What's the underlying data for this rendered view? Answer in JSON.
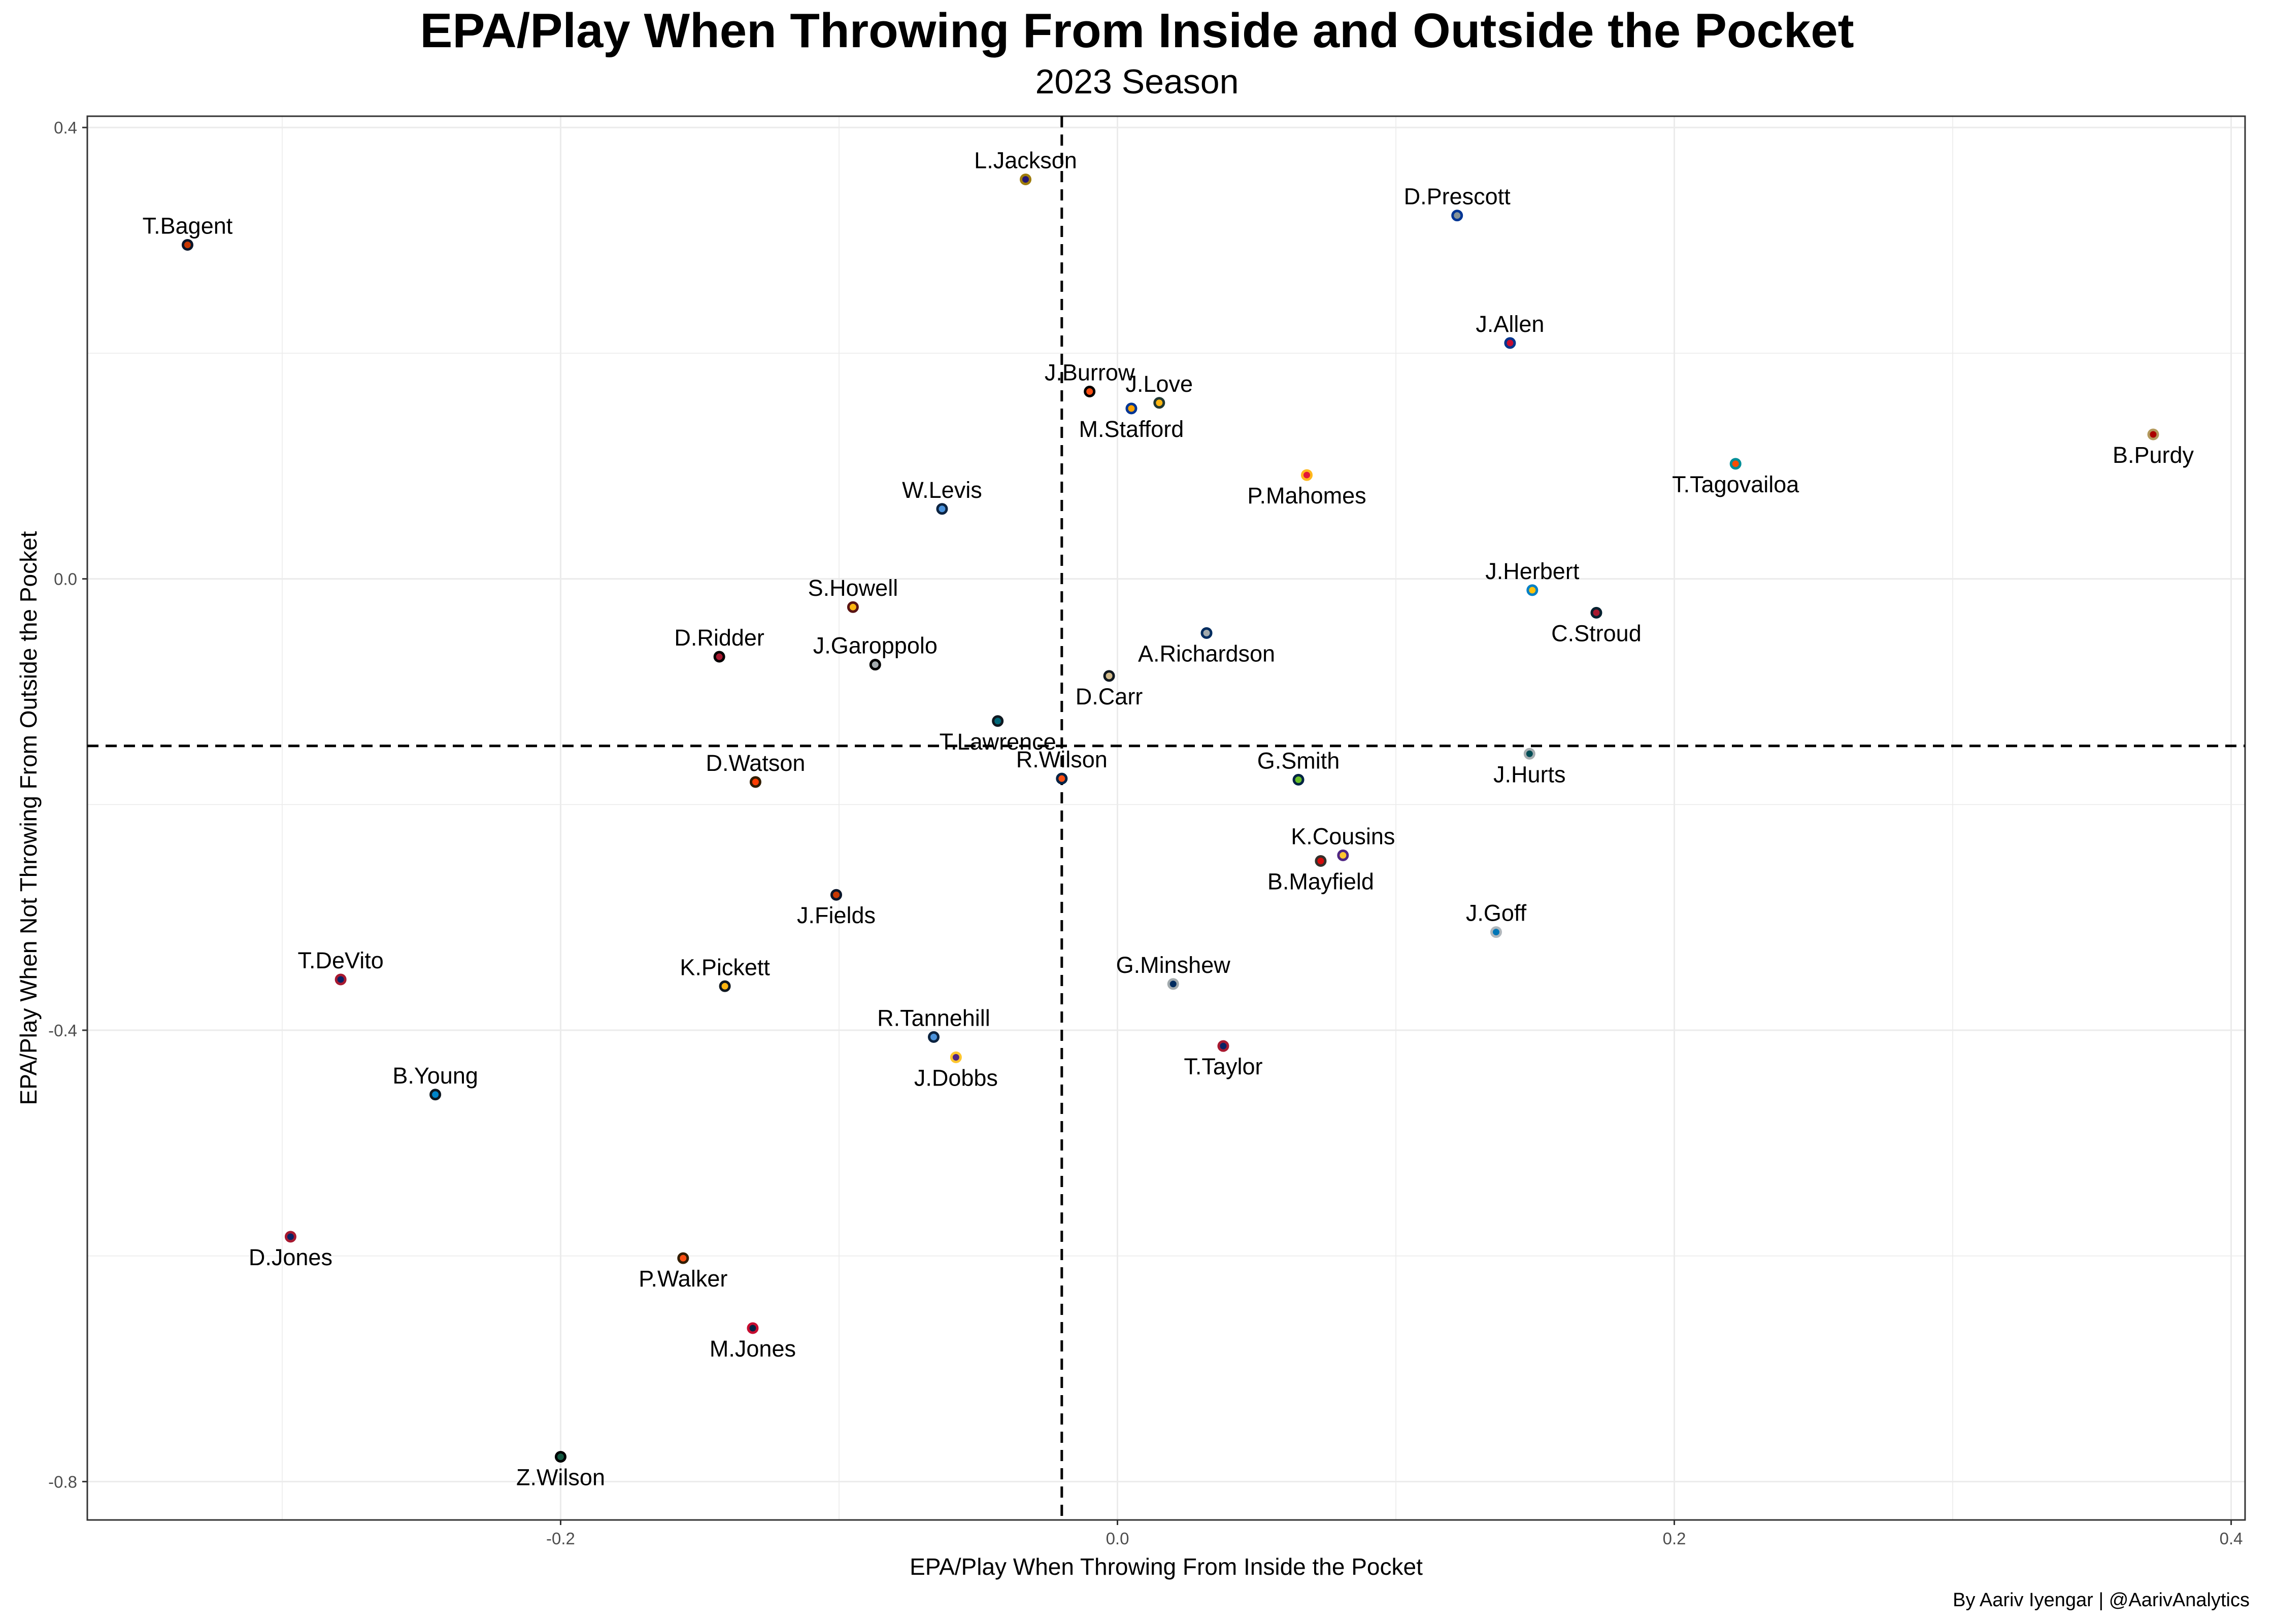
{
  "chart_data": {
    "type": "scatter",
    "title": "EPA/Play When Throwing From Inside and Outside the Pocket",
    "subtitle": "2023 Season",
    "xlabel": "EPA/Play When Throwing From Inside the Pocket",
    "ylabel": "EPA/Play When Not Throwing From Outside the Pocket",
    "caption": "By Aariv Iyengar | @AarivAnalytics",
    "xlim": [
      -0.37,
      0.405
    ],
    "ylim": [
      -0.834,
      0.41
    ],
    "xticks": [
      -0.2,
      0.0,
      0.2,
      0.4
    ],
    "yticks": [
      -0.8,
      -0.4,
      0.0,
      0.4
    ],
    "xtick_labels": [
      "-0.2",
      "0.0",
      "0.2",
      "0.4"
    ],
    "ytick_labels": [
      "-0.8",
      "-0.4",
      "0.0",
      "0.4"
    ],
    "grid": true,
    "reference_lines": {
      "x": -0.02,
      "y": -0.148
    },
    "points": [
      {
        "name": "L.Jackson",
        "x": -0.033,
        "y": 0.354,
        "color": "#241773",
        "edge": "#9E7C0C",
        "label_pos": "above"
      },
      {
        "name": "T.Bagent",
        "x": -0.334,
        "y": 0.296,
        "color": "#C83803",
        "edge": "#0B162A",
        "label_pos": "above"
      },
      {
        "name": "D.Prescott",
        "x": 0.122,
        "y": 0.322,
        "color": "#869397",
        "edge": "#003594",
        "label_pos": "above"
      },
      {
        "name": "J.Allen",
        "x": 0.141,
        "y": 0.209,
        "color": "#C60C30",
        "edge": "#00338D",
        "label_pos": "above"
      },
      {
        "name": "J.Burrow",
        "x": -0.01,
        "y": 0.166,
        "color": "#FB4F14",
        "edge": "#000000",
        "label_pos": "above"
      },
      {
        "name": "J.Love",
        "x": 0.015,
        "y": 0.156,
        "color": "#FFB612",
        "edge": "#203731",
        "label_pos": "above"
      },
      {
        "name": "M.Stafford",
        "x": 0.005,
        "y": 0.151,
        "color": "#FFA300",
        "edge": "#003594",
        "label_pos": "below"
      },
      {
        "name": "B.Purdy",
        "x": 0.372,
        "y": 0.128,
        "color": "#AA0000",
        "edge": "#B3995D",
        "label_pos": "below"
      },
      {
        "name": "T.Tagovailoa",
        "x": 0.222,
        "y": 0.102,
        "color": "#FC4C02",
        "edge": "#008E97",
        "label_pos": "below"
      },
      {
        "name": "P.Mahomes",
        "x": 0.068,
        "y": 0.092,
        "color": "#E31837",
        "edge": "#FFB81C",
        "label_pos": "below"
      },
      {
        "name": "W.Levis",
        "x": -0.063,
        "y": 0.062,
        "color": "#4B92DB",
        "edge": "#0C2340",
        "label_pos": "above"
      },
      {
        "name": "J.Herbert",
        "x": 0.149,
        "y": -0.01,
        "color": "#FFC20E",
        "edge": "#0080C6",
        "label_pos": "above"
      },
      {
        "name": "C.Stroud",
        "x": 0.172,
        "y": -0.03,
        "color": "#A71930",
        "edge": "#03202F",
        "label_pos": "below"
      },
      {
        "name": "S.Howell",
        "x": -0.095,
        "y": -0.025,
        "color": "#FFB612",
        "edge": "#5A1414",
        "label_pos": "above"
      },
      {
        "name": "A.Richardson",
        "x": 0.032,
        "y": -0.048,
        "color": "#A2AAAD",
        "edge": "#002C5F",
        "label_pos": "below"
      },
      {
        "name": "D.Ridder",
        "x": -0.143,
        "y": -0.069,
        "color": "#A71930",
        "edge": "#000000",
        "label_pos": "above"
      },
      {
        "name": "J.Garoppolo",
        "x": -0.087,
        "y": -0.076,
        "color": "#A5ACAF",
        "edge": "#000000",
        "label_pos": "above"
      },
      {
        "name": "D.Carr",
        "x": -0.003,
        "y": -0.086,
        "color": "#D3BC8D",
        "edge": "#101820",
        "label_pos": "below"
      },
      {
        "name": "T.Lawrence",
        "x": -0.043,
        "y": -0.126,
        "color": "#006778",
        "edge": "#101820",
        "label_pos": "below"
      },
      {
        "name": "J.Hurts",
        "x": 0.148,
        "y": -0.155,
        "color": "#004C54",
        "edge": "#A5ACAF",
        "label_pos": "below"
      },
      {
        "name": "R.Wilson",
        "x": -0.02,
        "y": -0.177,
        "color": "#FB4F14",
        "edge": "#002244",
        "label_pos": "above"
      },
      {
        "name": "G.Smith",
        "x": 0.065,
        "y": -0.178,
        "color": "#69BE28",
        "edge": "#002244",
        "label_pos": "above"
      },
      {
        "name": "D.Watson",
        "x": -0.13,
        "y": -0.18,
        "color": "#FF3C00",
        "edge": "#311D00",
        "label_pos": "above"
      },
      {
        "name": "K.Cousins",
        "x": 0.081,
        "y": -0.245,
        "color": "#FFC62F",
        "edge": "#4F2683",
        "label_pos": "above"
      },
      {
        "name": "B.Mayfield",
        "x": 0.073,
        "y": -0.25,
        "color": "#D50A0A",
        "edge": "#34302B",
        "label_pos": "below"
      },
      {
        "name": "J.Fields",
        "x": -0.101,
        "y": -0.28,
        "color": "#C83803",
        "edge": "#0B162A",
        "label_pos": "below"
      },
      {
        "name": "J.Goff",
        "x": 0.136,
        "y": -0.313,
        "color": "#0076B6",
        "edge": "#B0B7BC",
        "label_pos": "above"
      },
      {
        "name": "T.DeVito",
        "x": -0.279,
        "y": -0.355,
        "color": "#0B2265",
        "edge": "#A71930",
        "label_pos": "above"
      },
      {
        "name": "K.Pickett",
        "x": -0.141,
        "y": -0.361,
        "color": "#FFB612",
        "edge": "#101820",
        "label_pos": "above"
      },
      {
        "name": "G.Minshew",
        "x": 0.02,
        "y": -0.359,
        "color": "#002C5F",
        "edge": "#A2AAAD",
        "label_pos": "above"
      },
      {
        "name": "R.Tannehill",
        "x": -0.066,
        "y": -0.406,
        "color": "#4B92DB",
        "edge": "#0C2340",
        "label_pos": "above"
      },
      {
        "name": "T.Taylor",
        "x": 0.038,
        "y": -0.414,
        "color": "#0B2265",
        "edge": "#A71930",
        "label_pos": "below"
      },
      {
        "name": "J.Dobbs",
        "x": -0.058,
        "y": -0.424,
        "color": "#4F2683",
        "edge": "#FFC62F",
        "label_pos": "below"
      },
      {
        "name": "B.Young",
        "x": -0.245,
        "y": -0.457,
        "color": "#0085CA",
        "edge": "#101820",
        "label_pos": "above"
      },
      {
        "name": "D.Jones",
        "x": -0.297,
        "y": -0.583,
        "color": "#0B2265",
        "edge": "#A71930",
        "label_pos": "below"
      },
      {
        "name": "P.Walker",
        "x": -0.156,
        "y": -0.602,
        "color": "#FB4F14",
        "edge": "#311D00",
        "label_pos": "below"
      },
      {
        "name": "M.Jones",
        "x": -0.131,
        "y": -0.664,
        "color": "#002244",
        "edge": "#C60C30",
        "label_pos": "below"
      },
      {
        "name": "Z.Wilson",
        "x": -0.2,
        "y": -0.778,
        "color": "#125740",
        "edge": "#000000",
        "label_pos": "below"
      }
    ]
  }
}
